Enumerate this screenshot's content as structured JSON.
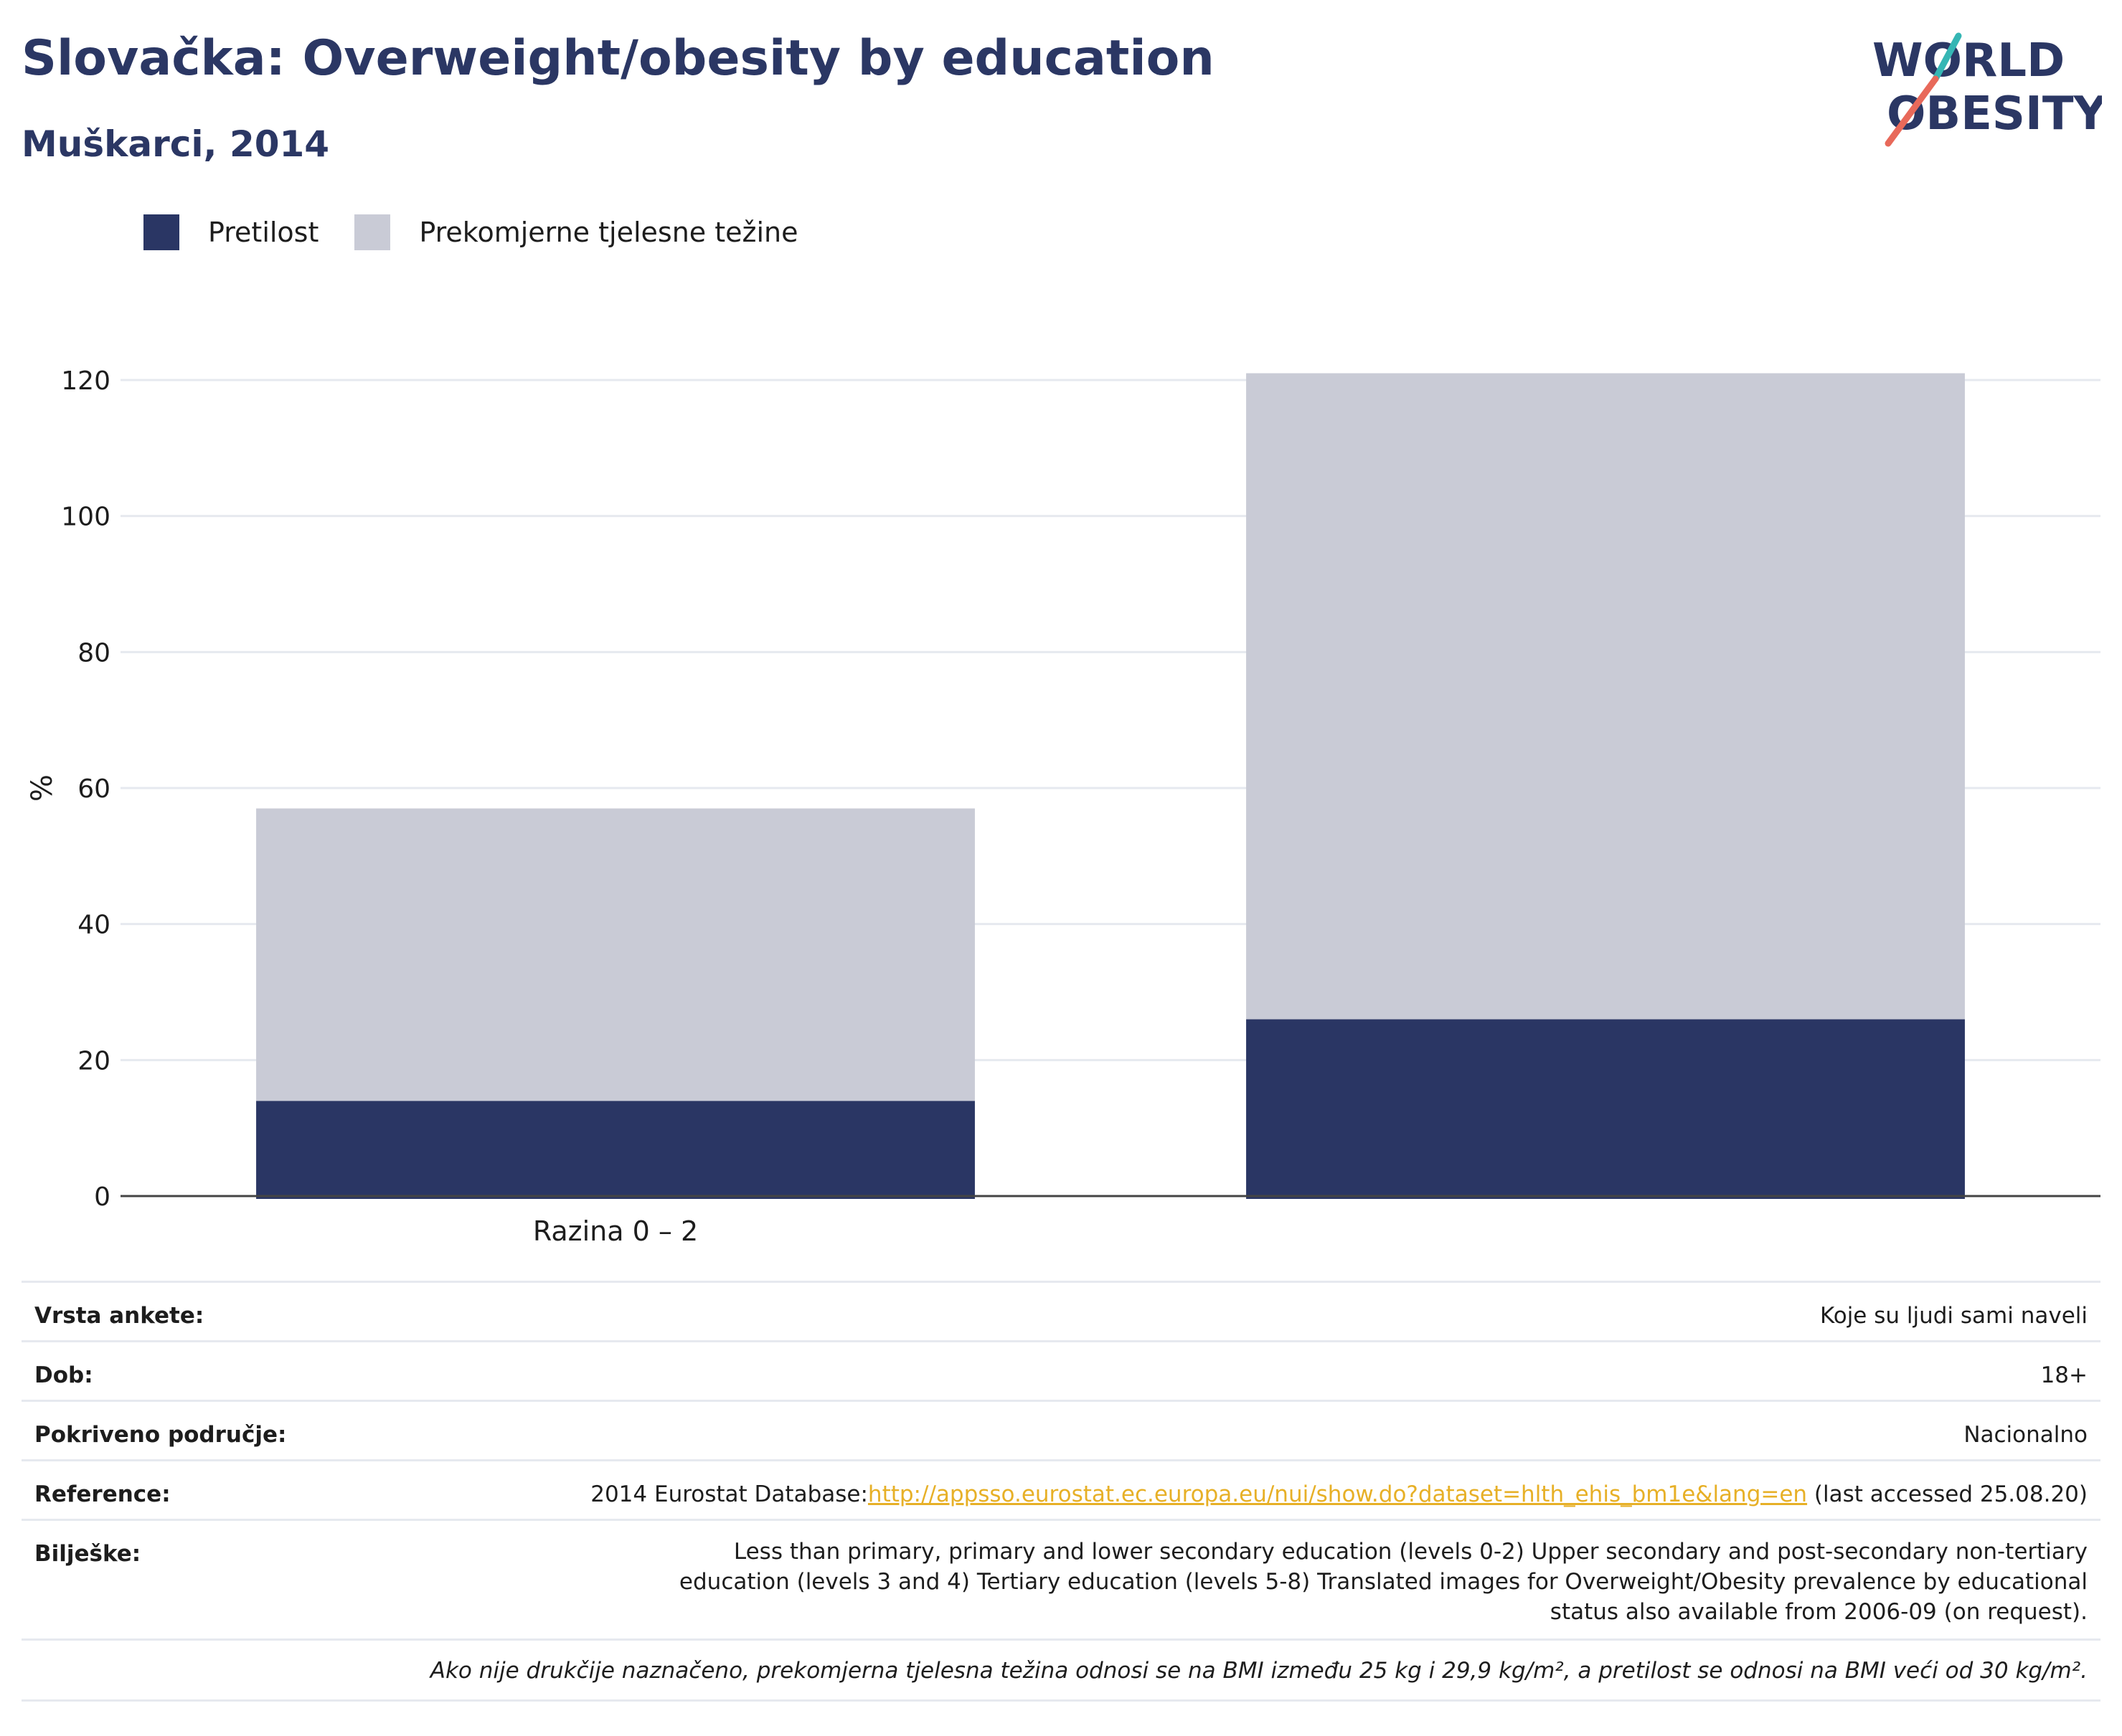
{
  "header": {
    "title": "Slovačka: Overweight/obesity by education",
    "subtitle": "Muškarci, 2014"
  },
  "logo": {
    "line1": "WORLD",
    "line2": "OBESITY"
  },
  "colors": {
    "obesity": "#2a3664",
    "overweight": "#c9cbd6",
    "title": "#2b3764",
    "link": "#e7b027",
    "grid": "#e6e9ef"
  },
  "legend": [
    {
      "label": "Pretilost",
      "color": "#2a3664"
    },
    {
      "label": "Prekomjerne tjelesne težine",
      "color": "#c9cbd6"
    }
  ],
  "chart_data": {
    "type": "bar",
    "stacked": true,
    "categories": [
      "Razina 0 – 2",
      ""
    ],
    "series": [
      {
        "name": "Pretilost",
        "values": [
          14,
          26
        ]
      },
      {
        "name": "Prekomjerne tjelesne težine",
        "values": [
          43,
          95
        ]
      }
    ],
    "ylabel": "%",
    "ylim": [
      0,
      120
    ],
    "yticks": [
      0,
      20,
      40,
      60,
      80,
      100,
      120
    ],
    "grid": true,
    "legend_position": "top-left"
  },
  "info": {
    "survey_type": {
      "label": "Vrsta ankete:",
      "value": "Koje su ljudi sami naveli"
    },
    "age": {
      "label": "Dob:",
      "value": "18+"
    },
    "coverage": {
      "label": "Pokriveno područje:",
      "value": "Nacionalno"
    },
    "reference": {
      "label": "Reference:",
      "prefix": "2014 Eurostat Database:",
      "link": "http://appsso.eurostat.ec.europa.eu/nui/show.do?dataset=hlth_ehis_bm1e&lang=en",
      "suffix": " (last accessed 25.08.20)"
    },
    "notes": {
      "label": "Bilješke:",
      "value": "Less than primary, primary and lower secondary education (levels 0-2) Upper secondary and post-secondary non-tertiary education (levels 3 and 4) Tertiary education (levels 5-8) Translated images for Overweight/Obesity prevalence by educational status also available from 2006-09 (on request)."
    },
    "footnote": "Ako nije drukčije naznačeno, prekomjerna tjelesna težina odnosi se na BMI između 25 kg i 29,9 kg/m², a pretilost se odnosi na BMI veći od 30 kg/m²."
  }
}
